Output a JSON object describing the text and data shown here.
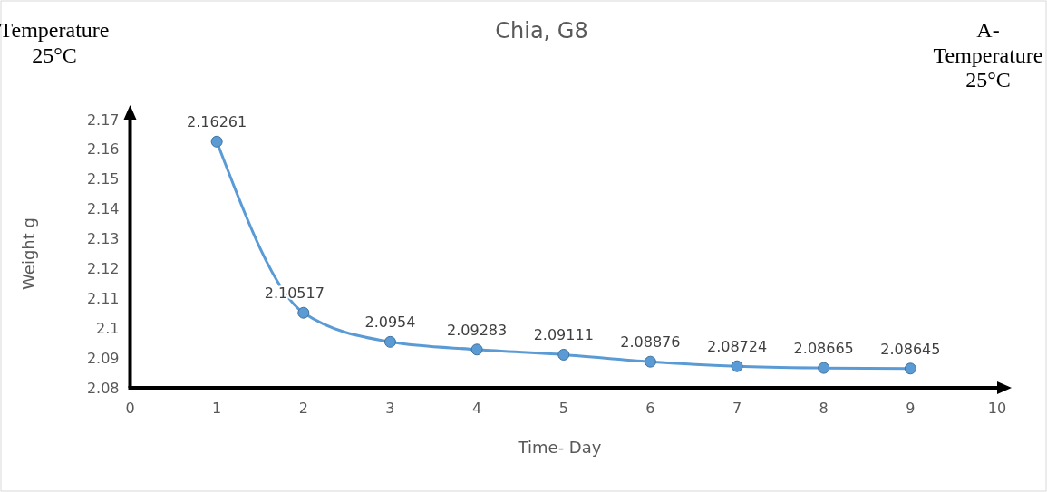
{
  "chart_data": {
    "type": "line",
    "title": "Chia, G8",
    "xlabel": "Time- Day",
    "ylabel": "Weight g",
    "annotations": [
      "Temperature\n25°C",
      "A-\nTemperature\n25°C"
    ],
    "x": [
      1,
      2,
      3,
      4,
      5,
      6,
      7,
      8,
      9
    ],
    "series": [
      {
        "color": "#5b9bd5",
        "values": [
          2.16261,
          2.10517,
          2.0954,
          2.09283,
          2.09111,
          2.08876,
          2.08724,
          2.08665,
          2.08645
        ]
      }
    ],
    "xlim": [
      0,
      10
    ],
    "xticks": [
      0,
      1,
      2,
      3,
      4,
      5,
      6,
      7,
      8,
      9,
      10
    ],
    "ylim": [
      2.08,
      2.17
    ],
    "yticks": [
      2.08,
      2.09,
      2.1,
      2.11,
      2.12,
      2.13,
      2.14,
      2.15,
      2.16,
      2.17
    ],
    "data_labels": true,
    "marker": "circle",
    "line_style": "solid",
    "grid": false
  }
}
